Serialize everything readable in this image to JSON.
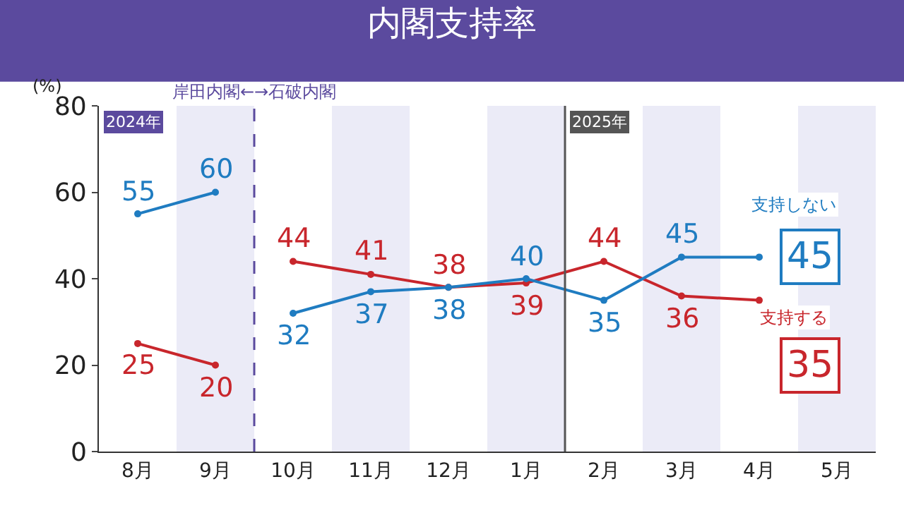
{
  "chart_data": {
    "type": "line",
    "title": "内閣支持率",
    "ylabel": "(%)",
    "categories": [
      "8月",
      "9月",
      "10月",
      "11月",
      "12月",
      "1月",
      "2月",
      "3月",
      "4月",
      "5月"
    ],
    "series": [
      {
        "name": "支持する",
        "color": "#c8262c",
        "values": [
          25,
          20,
          44,
          41,
          38,
          39,
          44,
          36,
          35,
          null
        ]
      },
      {
        "name": "支持しない",
        "color": "#1f7cc1",
        "values": [
          55,
          60,
          32,
          37,
          38,
          40,
          35,
          45,
          45,
          null
        ]
      }
    ],
    "ylim": [
      0,
      80
    ],
    "yticks": [
      0,
      20,
      40,
      60,
      80
    ],
    "grid": false,
    "marker": "circle",
    "line_style": "solid",
    "data_labels": true,
    "bands": [
      {
        "axis": "x",
        "from": "9月",
        "to": "9月",
        "color": "#ebebf7"
      },
      {
        "axis": "x",
        "from": "11月",
        "to": "11月",
        "color": "#ebebf7"
      },
      {
        "axis": "x",
        "from": "1月",
        "to": "1月",
        "color": "#ebebf7"
      },
      {
        "axis": "x",
        "from": "3月",
        "to": "3月",
        "color": "#ebebf7"
      },
      {
        "axis": "x",
        "from": "5月",
        "to": "5月",
        "color": "#ebebf7"
      }
    ],
    "ref_lines": [
      {
        "axis": "x",
        "value": "10月",
        "label": "岸田内閣←→石破内閣",
        "color": "#5b4a9e",
        "line_style": "dashed"
      },
      {
        "axis": "x",
        "value": "2月",
        "label": "2025年",
        "color": "#555555",
        "line_style": "solid"
      }
    ],
    "annotations": [
      "2024年"
    ]
  }
}
